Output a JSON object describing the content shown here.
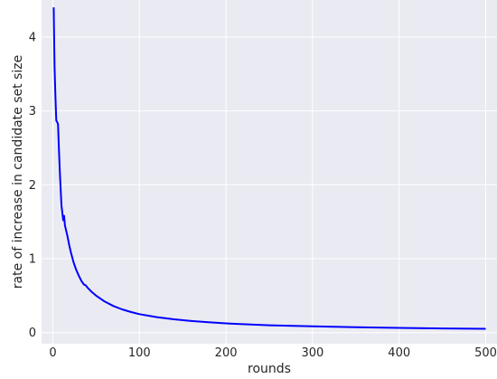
{
  "chart_data": {
    "type": "line",
    "title": "",
    "xlabel": "rounds",
    "ylabel": "rate of increase in candidate set size",
    "xlim": [
      -13,
      513
    ],
    "ylim": [
      -0.15,
      4.5
    ],
    "xticks": [
      0,
      100,
      200,
      300,
      400,
      500
    ],
    "yticks": [
      0,
      1,
      2,
      3,
      4
    ],
    "grid": true,
    "colors": {
      "background": "#eaeaf2",
      "grid": "#ffffff",
      "line": "#0000ff"
    },
    "series": [
      {
        "values": [
          [
            1,
            4.4
          ],
          [
            2,
            3.6
          ],
          [
            3,
            3.2
          ],
          [
            4,
            2.87
          ],
          [
            5,
            2.85
          ],
          [
            6,
            2.82
          ],
          [
            7,
            2.5
          ],
          [
            8,
            2.2
          ],
          [
            9,
            1.95
          ],
          [
            10,
            1.72
          ],
          [
            11,
            1.62
          ],
          [
            12,
            1.52
          ],
          [
            13,
            1.58
          ],
          [
            14,
            1.45
          ],
          [
            15,
            1.4
          ],
          [
            17,
            1.3
          ],
          [
            19,
            1.18
          ],
          [
            21,
            1.08
          ],
          [
            24,
            0.95
          ],
          [
            27,
            0.85
          ],
          [
            30,
            0.77
          ],
          [
            33,
            0.7
          ],
          [
            36,
            0.65
          ],
          [
            38,
            0.64
          ],
          [
            40,
            0.61
          ],
          [
            45,
            0.55
          ],
          [
            50,
            0.5
          ],
          [
            60,
            0.42
          ],
          [
            70,
            0.36
          ],
          [
            80,
            0.315
          ],
          [
            90,
            0.28
          ],
          [
            100,
            0.25
          ],
          [
            120,
            0.21
          ],
          [
            140,
            0.18
          ],
          [
            160,
            0.158
          ],
          [
            180,
            0.14
          ],
          [
            200,
            0.125
          ],
          [
            250,
            0.1
          ],
          [
            300,
            0.085
          ],
          [
            350,
            0.073
          ],
          [
            400,
            0.064
          ],
          [
            450,
            0.057
          ],
          [
            500,
            0.052
          ]
        ]
      }
    ]
  }
}
